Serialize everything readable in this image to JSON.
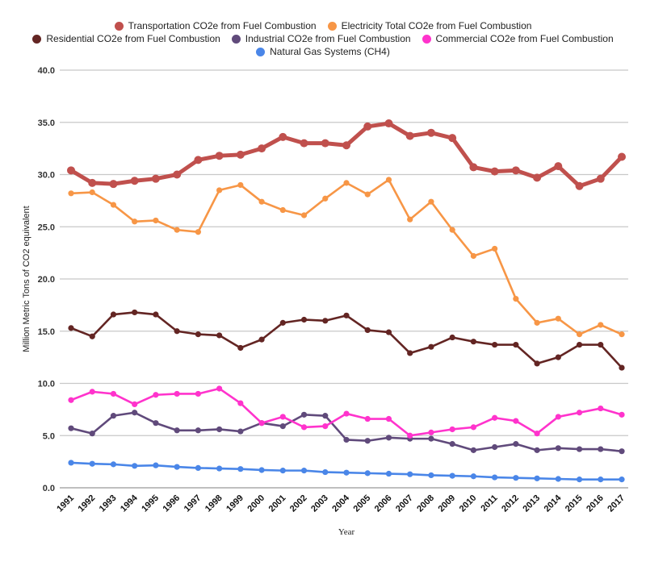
{
  "chart_data": {
    "type": "line",
    "title": "",
    "xlabel": "Year",
    "ylabel": "Million Metric Tons of CO2 equivalent",
    "ylim": [
      0,
      40
    ],
    "yticks": [
      "0.0",
      "5.0",
      "10.0",
      "15.0",
      "20.0",
      "25.0",
      "30.0",
      "35.0",
      "40.0"
    ],
    "grid": true,
    "legend_placement": "top",
    "x": [
      1991,
      1992,
      1993,
      1994,
      1995,
      1996,
      1997,
      1998,
      1999,
      2000,
      2001,
      2002,
      2003,
      2004,
      2005,
      2006,
      2007,
      2008,
      2009,
      2010,
      2011,
      2012,
      2013,
      2014,
      2015,
      2016,
      2017
    ],
    "series": [
      {
        "name": "Transportation CO2e from Fuel Combustion",
        "color": "#c0504d",
        "values": [
          30.4,
          29.2,
          29.1,
          29.4,
          29.6,
          30.0,
          31.4,
          31.8,
          31.9,
          32.5,
          33.6,
          33.0,
          33.0,
          32.8,
          34.6,
          34.9,
          33.7,
          34.0,
          33.5,
          30.7,
          30.3,
          30.4,
          29.7,
          30.8,
          28.9,
          29.6,
          31.7
        ]
      },
      {
        "name": "Electricity Total CO2e from Fuel Combustion",
        "color": "#f79646",
        "values": [
          28.2,
          28.3,
          27.1,
          25.5,
          25.6,
          24.7,
          24.5,
          28.5,
          29.0,
          27.4,
          26.6,
          26.1,
          27.7,
          29.2,
          28.1,
          29.5,
          25.7,
          27.4,
          24.7,
          22.2,
          22.9,
          18.1,
          15.8,
          16.2,
          14.7,
          15.6,
          14.7
        ]
      },
      {
        "name": "Residential CO2e from Fuel Combustion",
        "color": "#632523",
        "values": [
          15.3,
          14.5,
          16.6,
          16.8,
          16.6,
          15.0,
          14.7,
          14.6,
          13.4,
          14.2,
          15.8,
          16.1,
          16.0,
          16.5,
          15.1,
          14.9,
          12.9,
          13.5,
          14.4,
          14.0,
          13.7,
          13.7,
          11.9,
          12.5,
          13.7,
          13.7,
          11.5
        ]
      },
      {
        "name": "Industrial CO2e from Fuel Combustion",
        "color": "#604a7b",
        "values": [
          5.7,
          5.2,
          6.9,
          7.2,
          6.2,
          5.5,
          5.5,
          5.6,
          5.4,
          6.2,
          5.9,
          7.0,
          6.9,
          4.6,
          4.5,
          4.8,
          4.7,
          4.7,
          4.2,
          3.6,
          3.9,
          4.2,
          3.6,
          3.8,
          3.7,
          3.7,
          3.5
        ]
      },
      {
        "name": "Commercial CO2e from Fuel Combustion",
        "color": "#ff33cc",
        "values": [
          8.4,
          9.2,
          9.0,
          8.0,
          8.9,
          9.0,
          9.0,
          9.5,
          8.1,
          6.2,
          6.8,
          5.8,
          5.9,
          7.1,
          6.6,
          6.6,
          5.0,
          5.3,
          5.6,
          5.8,
          6.7,
          6.4,
          5.2,
          6.8,
          7.2,
          7.6,
          7.0
        ]
      },
      {
        "name": "Natural Gas Systems (CH4)",
        "color": "#4a86e8",
        "values": [
          2.4,
          2.3,
          2.25,
          2.1,
          2.15,
          2.0,
          1.9,
          1.85,
          1.8,
          1.7,
          1.65,
          1.65,
          1.5,
          1.45,
          1.4,
          1.35,
          1.3,
          1.2,
          1.15,
          1.1,
          1.0,
          0.95,
          0.9,
          0.85,
          0.8,
          0.8,
          0.8
        ]
      }
    ]
  }
}
